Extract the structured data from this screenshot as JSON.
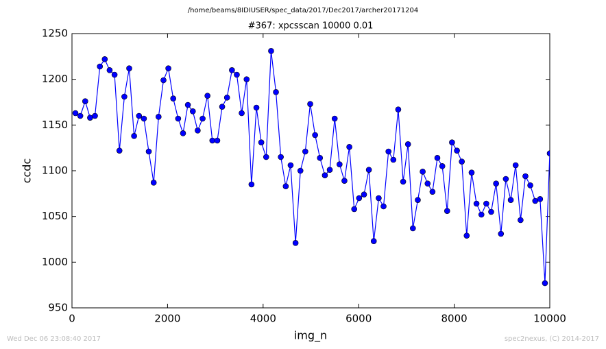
{
  "chart_data": {
    "type": "line",
    "header": "/home/beams/8IDIUSER/spec_data/2017/Dec2017/archer20171204",
    "title": "#367: xpcsscan 10000 0.01",
    "xlabel": "img_n",
    "ylabel": "ccdc",
    "footer_left": "Wed Dec 06 23:08:40 2017",
    "footer_right": "spec2nexus, (C) 2014-2017",
    "xlim": [
      0,
      10000
    ],
    "xticks": [
      0,
      2000,
      4000,
      6000,
      8000,
      10000
    ],
    "ylim": [
      950,
      1250
    ],
    "yticks": [
      950,
      1000,
      1050,
      1100,
      1150,
      1200,
      1250
    ],
    "grid": false,
    "x": [
      72,
      174,
      277,
      379,
      481,
      584,
      686,
      788,
      891,
      993,
      1096,
      1198,
      1300,
      1403,
      1505,
      1607,
      1710,
      1812,
      1915,
      2017,
      2119,
      2222,
      2324,
      2426,
      2529,
      2631,
      2734,
      2836,
      2938,
      3041,
      3143,
      3245,
      3348,
      3450,
      3552,
      3655,
      3757,
      3860,
      3962,
      4064,
      4167,
      4269,
      4371,
      4474,
      4576,
      4679,
      4781,
      4883,
      4986,
      5088,
      5190,
      5293,
      5395,
      5498,
      5600,
      5702,
      5805,
      5907,
      6009,
      6112,
      6214,
      6316,
      6419,
      6521,
      6624,
      6726,
      6828,
      6931,
      7033,
      7135,
      7238,
      7340,
      7443,
      7545,
      7647,
      7750,
      7852,
      7954,
      8057,
      8159,
      8261,
      8364,
      8466,
      8569,
      8671,
      8773,
      8876,
      8978,
      9080,
      9183,
      9285,
      9388,
      9490,
      9592,
      9695,
      9797,
      9899,
      10000
    ],
    "series": [
      {
        "name": "ccdc",
        "color": "#0000ff",
        "values": [
          1163,
          1160,
          1176,
          1158,
          1160,
          1214,
          1222,
          1210,
          1205,
          1122,
          1181,
          1212,
          1138,
          1160,
          1157,
          1121,
          1087,
          1159,
          1199,
          1212,
          1179,
          1157,
          1141,
          1172,
          1165,
          1144,
          1157,
          1182,
          1133,
          1133,
          1170,
          1180,
          1210,
          1205,
          1163,
          1200,
          1085,
          1169,
          1131,
          1115,
          1231,
          1186,
          1115,
          1083,
          1106,
          1021,
          1100,
          1121,
          1173,
          1139,
          1114,
          1095,
          1101,
          1157,
          1107,
          1089,
          1126,
          1058,
          1070,
          1074,
          1101,
          1023,
          1070,
          1061,
          1121,
          1112,
          1167,
          1088,
          1129,
          1037,
          1068,
          1099,
          1086,
          1077,
          1114,
          1105,
          1056,
          1131,
          1122,
          1110,
          1029,
          1098,
          1064,
          1052,
          1064,
          1055,
          1086,
          1031,
          1091,
          1068,
          1106,
          1046,
          1094,
          1084,
          1067,
          1069,
          977,
          1119
        ]
      }
    ]
  }
}
